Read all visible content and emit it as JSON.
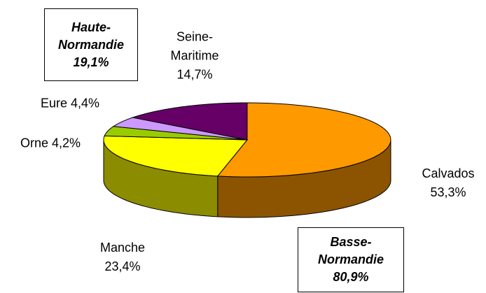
{
  "chart_data": {
    "type": "pie",
    "categories": [
      "Calvados",
      "Manche",
      "Orne",
      "Eure",
      "Seine-Maritime"
    ],
    "values": [
      53.3,
      23.4,
      4.2,
      4.4,
      14.7
    ],
    "value_labels": [
      "53,3%",
      "23,4%",
      "4,2%",
      "4,4%",
      "14,7%"
    ],
    "colors": [
      "#ff9900",
      "#ffff00",
      "#99cc00",
      "#cc99ff",
      "#660066"
    ],
    "annotations": [
      {
        "text": "Haute-Normandie",
        "label": "19,1%"
      },
      {
        "text": "Basse-Normandie",
        "label": "80,9%"
      }
    ]
  }
}
